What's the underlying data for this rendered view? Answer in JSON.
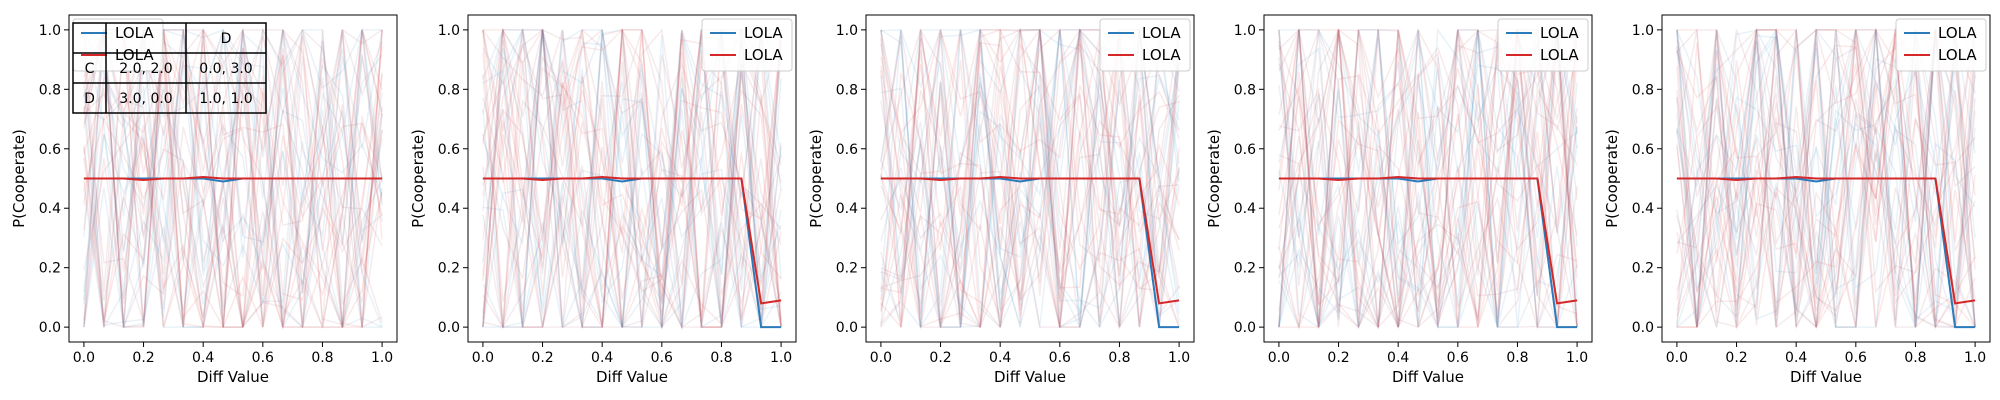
{
  "chart_data": [
    {
      "type": "line",
      "xlabel": "Diff Value",
      "ylabel": "P(Cooperate)",
      "xlim": [
        -0.05,
        1.05
      ],
      "ylim": [
        -0.05,
        1.05
      ],
      "xticks": [
        "0.0",
        "0.2",
        "0.4",
        "0.6",
        "0.8",
        "1.0"
      ],
      "yticks": [
        "0.0",
        "0.2",
        "0.4",
        "0.6",
        "0.8",
        "1.0"
      ],
      "grid": false,
      "legend_position": "top-left",
      "series": [
        {
          "name": "LOLA",
          "color": "#2b7bba",
          "x": [
            0,
            0.067,
            0.133,
            0.2,
            0.267,
            0.333,
            0.4,
            0.467,
            0.533,
            0.6,
            0.667,
            0.733,
            0.8,
            0.867,
            0.933,
            1.0
          ],
          "y": [
            0.5,
            0.5,
            0.5,
            0.5,
            0.5,
            0.5,
            0.5,
            0.49,
            0.5,
            0.5,
            0.5,
            0.5,
            0.5,
            0.5,
            0.5,
            0.5
          ]
        },
        {
          "name": "LOLA",
          "color": "#d62728",
          "x": [
            0,
            0.067,
            0.133,
            0.2,
            0.267,
            0.333,
            0.4,
            0.467,
            0.533,
            0.6,
            0.667,
            0.733,
            0.8,
            0.867,
            0.933,
            1.0
          ],
          "y": [
            0.5,
            0.5,
            0.5,
            0.495,
            0.5,
            0.5,
            0.505,
            0.5,
            0.5,
            0.5,
            0.5,
            0.5,
            0.5,
            0.5,
            0.5,
            0.5
          ]
        }
      ],
      "payoff_table": {
        "header": [
          "",
          "",
          "D"
        ],
        "rows": [
          [
            "C",
            "2.0, 2.0",
            "0.0, 3.0"
          ],
          [
            "D",
            "3.0, 0.0",
            "1.0, 1.0"
          ]
        ]
      }
    },
    {
      "type": "line",
      "xlabel": "Diff Value",
      "ylabel": "P(Cooperate)",
      "xlim": [
        -0.05,
        1.05
      ],
      "ylim": [
        -0.05,
        1.05
      ],
      "xticks": [
        "0.0",
        "0.2",
        "0.4",
        "0.6",
        "0.8",
        "1.0"
      ],
      "yticks": [
        "0.0",
        "0.2",
        "0.4",
        "0.6",
        "0.8",
        "1.0"
      ],
      "grid": false,
      "legend_position": "top-right",
      "series": [
        {
          "name": "LOLA",
          "color": "#2b7bba",
          "x": [
            0,
            0.067,
            0.133,
            0.2,
            0.267,
            0.333,
            0.4,
            0.467,
            0.533,
            0.6,
            0.667,
            0.733,
            0.8,
            0.867,
            0.933,
            1.0
          ],
          "y": [
            0.5,
            0.5,
            0.5,
            0.5,
            0.5,
            0.5,
            0.5,
            0.49,
            0.5,
            0.5,
            0.5,
            0.5,
            0.5,
            0.5,
            0.0,
            0.0
          ]
        },
        {
          "name": "LOLA",
          "color": "#d62728",
          "x": [
            0,
            0.067,
            0.133,
            0.2,
            0.267,
            0.333,
            0.4,
            0.467,
            0.533,
            0.6,
            0.667,
            0.733,
            0.8,
            0.867,
            0.933,
            1.0
          ],
          "y": [
            0.5,
            0.5,
            0.5,
            0.495,
            0.5,
            0.5,
            0.505,
            0.5,
            0.5,
            0.5,
            0.5,
            0.5,
            0.5,
            0.5,
            0.08,
            0.09
          ]
        }
      ]
    },
    {
      "type": "line",
      "xlabel": "Diff Value",
      "ylabel": "P(Cooperate)",
      "xlim": [
        -0.05,
        1.05
      ],
      "ylim": [
        -0.05,
        1.05
      ],
      "xticks": [
        "0.0",
        "0.2",
        "0.4",
        "0.6",
        "0.8",
        "1.0"
      ],
      "yticks": [
        "0.0",
        "0.2",
        "0.4",
        "0.6",
        "0.8",
        "1.0"
      ],
      "grid": false,
      "legend_position": "top-right",
      "series": [
        {
          "name": "LOLA",
          "color": "#2b7bba",
          "x": [
            0,
            0.067,
            0.133,
            0.2,
            0.267,
            0.333,
            0.4,
            0.467,
            0.533,
            0.6,
            0.667,
            0.733,
            0.8,
            0.867,
            0.933,
            1.0
          ],
          "y": [
            0.5,
            0.5,
            0.5,
            0.5,
            0.5,
            0.5,
            0.5,
            0.49,
            0.5,
            0.5,
            0.5,
            0.5,
            0.5,
            0.5,
            0.0,
            0.0
          ]
        },
        {
          "name": "LOLA",
          "color": "#d62728",
          "x": [
            0,
            0.067,
            0.133,
            0.2,
            0.267,
            0.333,
            0.4,
            0.467,
            0.533,
            0.6,
            0.667,
            0.733,
            0.8,
            0.867,
            0.933,
            1.0
          ],
          "y": [
            0.5,
            0.5,
            0.5,
            0.495,
            0.5,
            0.5,
            0.505,
            0.5,
            0.5,
            0.5,
            0.5,
            0.5,
            0.5,
            0.5,
            0.08,
            0.09
          ]
        }
      ]
    },
    {
      "type": "line",
      "xlabel": "Diff Value",
      "ylabel": "P(Cooperate)",
      "xlim": [
        -0.05,
        1.05
      ],
      "ylim": [
        -0.05,
        1.05
      ],
      "xticks": [
        "0.0",
        "0.2",
        "0.4",
        "0.6",
        "0.8",
        "1.0"
      ],
      "yticks": [
        "0.0",
        "0.2",
        "0.4",
        "0.6",
        "0.8",
        "1.0"
      ],
      "grid": false,
      "legend_position": "top-right",
      "series": [
        {
          "name": "LOLA",
          "color": "#2b7bba",
          "x": [
            0,
            0.067,
            0.133,
            0.2,
            0.267,
            0.333,
            0.4,
            0.467,
            0.533,
            0.6,
            0.667,
            0.733,
            0.8,
            0.867,
            0.933,
            1.0
          ],
          "y": [
            0.5,
            0.5,
            0.5,
            0.5,
            0.5,
            0.5,
            0.5,
            0.49,
            0.5,
            0.5,
            0.5,
            0.5,
            0.5,
            0.5,
            0.0,
            0.0
          ]
        },
        {
          "name": "LOLA",
          "color": "#d62728",
          "x": [
            0,
            0.067,
            0.133,
            0.2,
            0.267,
            0.333,
            0.4,
            0.467,
            0.533,
            0.6,
            0.667,
            0.733,
            0.8,
            0.867,
            0.933,
            1.0
          ],
          "y": [
            0.5,
            0.5,
            0.5,
            0.495,
            0.5,
            0.5,
            0.505,
            0.5,
            0.5,
            0.5,
            0.5,
            0.5,
            0.5,
            0.5,
            0.08,
            0.09
          ]
        }
      ]
    },
    {
      "type": "line",
      "xlabel": "Diff Value",
      "ylabel": "P(Cooperate)",
      "xlim": [
        -0.05,
        1.05
      ],
      "ylim": [
        -0.05,
        1.05
      ],
      "xticks": [
        "0.0",
        "0.2",
        "0.4",
        "0.6",
        "0.8",
        "1.0"
      ],
      "yticks": [
        "0.0",
        "0.2",
        "0.4",
        "0.6",
        "0.8",
        "1.0"
      ],
      "grid": false,
      "legend_position": "top-right",
      "series": [
        {
          "name": "LOLA",
          "color": "#2b7bba",
          "x": [
            0,
            0.067,
            0.133,
            0.2,
            0.267,
            0.333,
            0.4,
            0.467,
            0.533,
            0.6,
            0.667,
            0.733,
            0.8,
            0.867,
            0.933,
            1.0
          ],
          "y": [
            0.5,
            0.5,
            0.5,
            0.5,
            0.5,
            0.5,
            0.5,
            0.49,
            0.5,
            0.5,
            0.5,
            0.5,
            0.5,
            0.5,
            0.0,
            0.0
          ]
        },
        {
          "name": "LOLA",
          "color": "#d62728",
          "x": [
            0,
            0.067,
            0.133,
            0.2,
            0.267,
            0.333,
            0.4,
            0.467,
            0.533,
            0.6,
            0.667,
            0.733,
            0.8,
            0.867,
            0.933,
            1.0
          ],
          "y": [
            0.5,
            0.5,
            0.5,
            0.495,
            0.5,
            0.5,
            0.505,
            0.5,
            0.5,
            0.5,
            0.5,
            0.5,
            0.5,
            0.5,
            0.08,
            0.09
          ]
        }
      ]
    }
  ],
  "background_traces": {
    "count": 40,
    "alpha": 0.1,
    "colors": [
      "#2b7bba",
      "#d62728",
      "#9b3a50"
    ]
  }
}
